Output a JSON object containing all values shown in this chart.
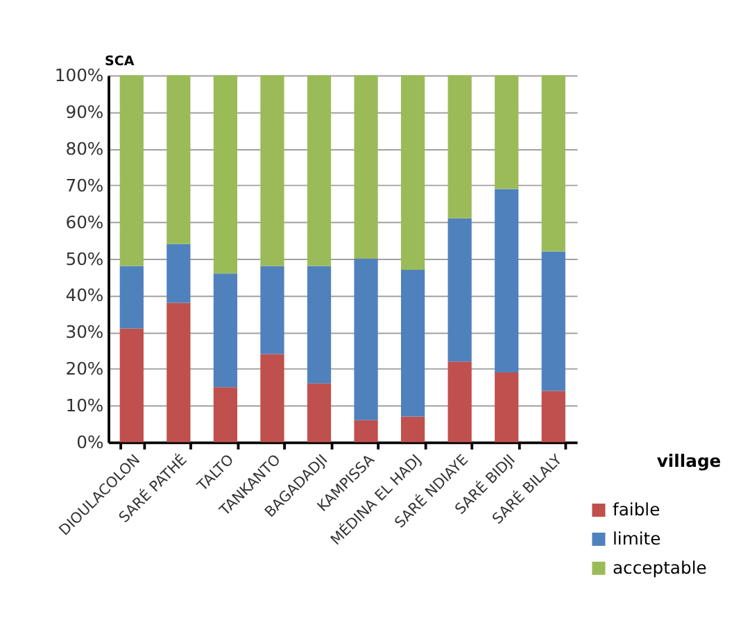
{
  "chart_data": {
    "type": "bar",
    "stacked": true,
    "xlabel": "village",
    "ylabel": "SCA",
    "categories": [
      "DIOULACOLON",
      "SARÉ PATHÉ",
      "TALTO",
      "TANKANTO",
      "BAGADADJI",
      "KAMPISSA",
      "MÉDINA EL HADJ",
      "SARÉ NDIAYE",
      "SARÉ BIDJI",
      "SARÉ BILALY"
    ],
    "series": [
      {
        "name": "faible",
        "color": "#c0504d",
        "values": [
          31,
          38,
          15,
          24,
          16,
          6,
          7,
          22,
          19,
          14
        ]
      },
      {
        "name": "limite",
        "color": "#4f81bd",
        "values": [
          17,
          16,
          31,
          24,
          32,
          44,
          40,
          39,
          50,
          38
        ]
      },
      {
        "name": "acceptable",
        "color": "#9bbb59",
        "values": [
          52,
          46,
          54,
          52,
          52,
          50,
          53,
          39,
          31,
          48
        ]
      }
    ],
    "ylim": [
      0,
      100
    ],
    "yticks": [
      {
        "value": 0,
        "label": "0%"
      },
      {
        "value": 10,
        "label": "10%"
      },
      {
        "value": 20,
        "label": "20%"
      },
      {
        "value": 30,
        "label": "30%"
      },
      {
        "value": 40,
        "label": "40%"
      },
      {
        "value": 50,
        "label": "50%"
      },
      {
        "value": 60,
        "label": "60%"
      },
      {
        "value": 70,
        "label": "70%"
      },
      {
        "value": 80,
        "label": "80%"
      },
      {
        "value": 90,
        "label": "90%"
      },
      {
        "value": 100,
        "label": "100%"
      }
    ],
    "grid": "y",
    "legend": "bottom right"
  }
}
